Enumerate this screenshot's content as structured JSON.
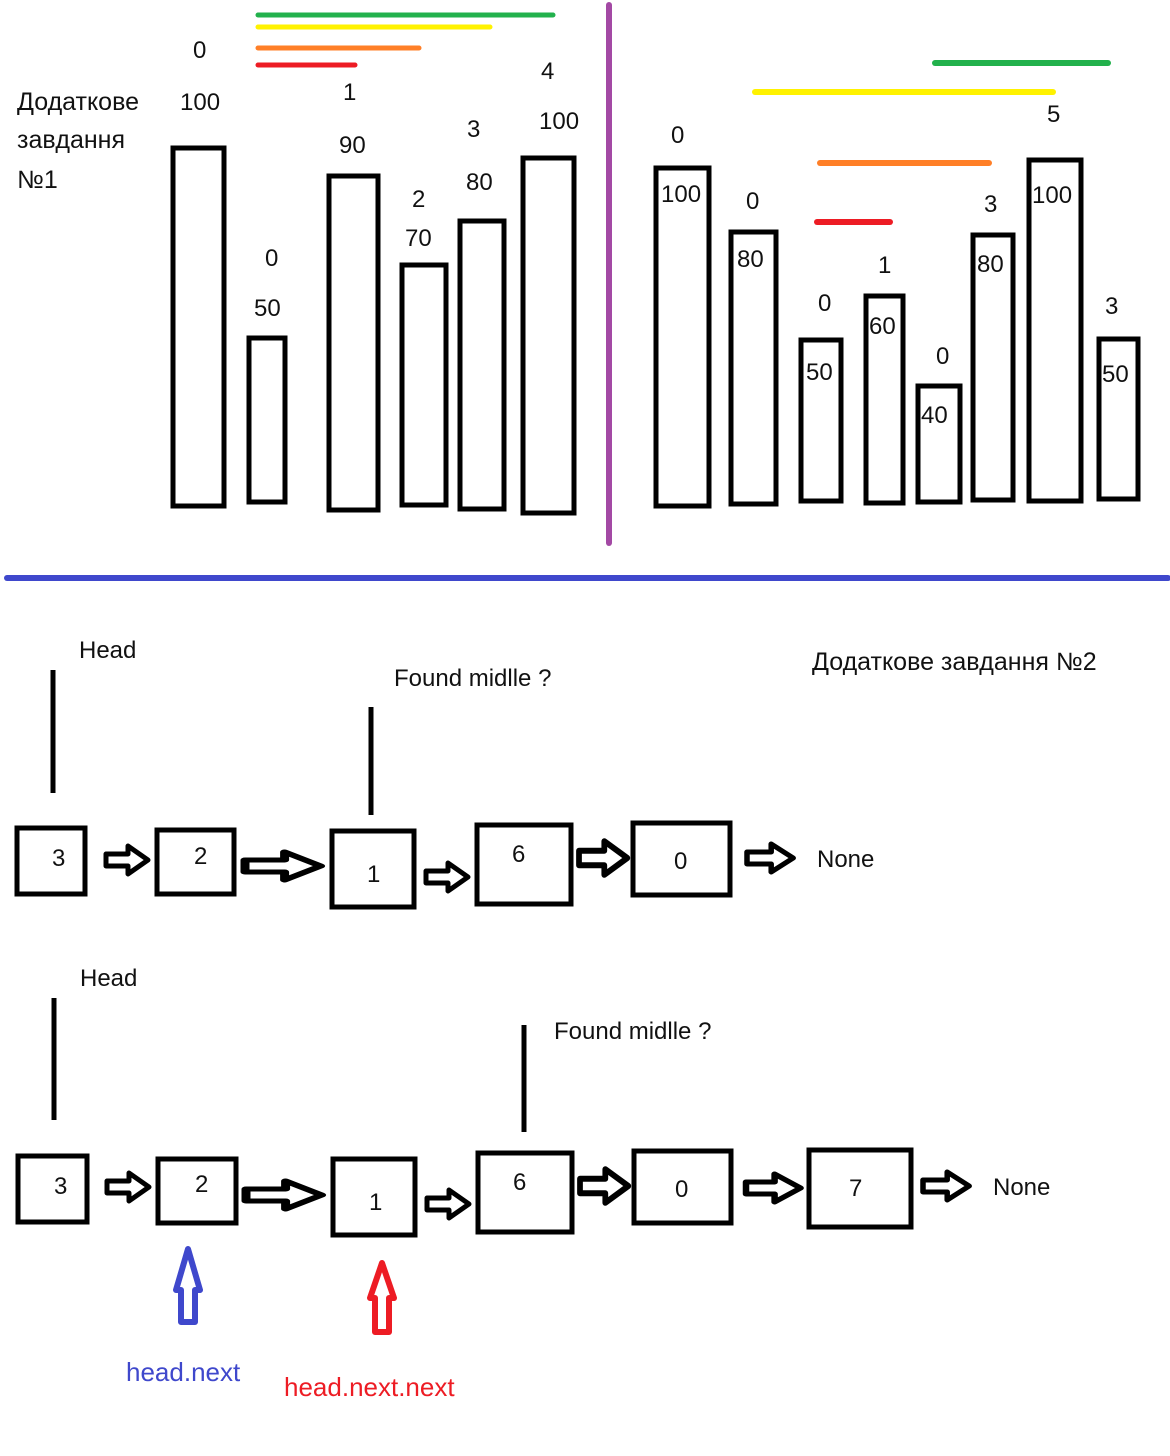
{
  "task1": {
    "title_lines": [
      "Додаткове",
      "завдання",
      "№1"
    ],
    "left_bars": [
      {
        "value": "100",
        "index": "0"
      },
      {
        "value": "50",
        "index": "0"
      },
      {
        "value": "90",
        "index": "1"
      },
      {
        "value": "70",
        "index": "2"
      },
      {
        "value": "80",
        "index": "3"
      },
      {
        "value": "100",
        "index": "4"
      }
    ],
    "right_bars": [
      {
        "value": "100",
        "index": "0"
      },
      {
        "value": "80",
        "index": "0"
      },
      {
        "value": "50",
        "index": "0"
      },
      {
        "value": "60",
        "index": "1"
      },
      {
        "value": "40",
        "index": "0"
      },
      {
        "value": "80",
        "index": "3"
      },
      {
        "value": "100",
        "index": "5"
      },
      {
        "value": "50",
        "index": "3"
      }
    ],
    "colors": {
      "green": "#22b14c",
      "yellow": "#fff200",
      "orange": "#ff7f27",
      "red": "#ed1c24",
      "divider": "#a349a4"
    }
  },
  "task2": {
    "title": "Додаткове завдання №2",
    "separator_color": "#3f48cc",
    "list1": {
      "head_label": "Head",
      "middle_label": "Found midlle ?",
      "nodes": [
        "3",
        "2",
        "1",
        "6",
        "0"
      ],
      "end_label": "None"
    },
    "list2": {
      "head_label": "Head",
      "middle_label": "Found midlle ?",
      "nodes": [
        "3",
        "2",
        "1",
        "6",
        "0",
        "7"
      ],
      "end_label": "None",
      "pointer_next": {
        "label": "head.next",
        "color": "#3f48cc"
      },
      "pointer_next_next": {
        "label": "head.next.next",
        "color": "#ed1c24"
      }
    }
  }
}
